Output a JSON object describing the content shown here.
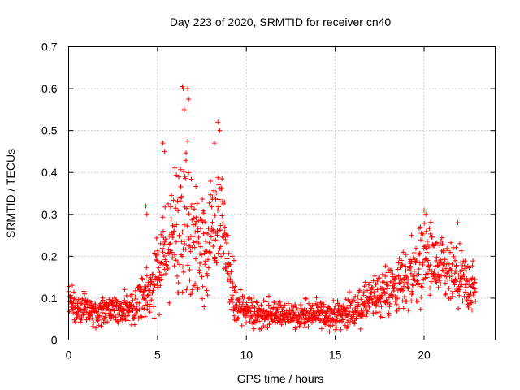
{
  "chart_data": {
    "type": "scatter",
    "title": "Day 223 of 2020, SRMTID for receiver cn40",
    "xlabel": "GPS time / hours",
    "ylabel": "SRMTID / TECUs",
    "xlim": [
      0,
      24
    ],
    "ylim": [
      0,
      0.7
    ],
    "xticks": [
      0,
      5,
      10,
      15,
      20
    ],
    "xtick_labels": [
      "0",
      "5",
      "10",
      "15",
      "20"
    ],
    "yticks": [
      0,
      0.1,
      0.2,
      0.3,
      0.4,
      0.5,
      0.6,
      0.7
    ],
    "ytick_labels": [
      "0",
      "0.1",
      "0.2",
      "0.3",
      "0.4",
      "0.5",
      "0.6",
      "0.7"
    ],
    "grid": true,
    "marker": "+",
    "color": "#ff0000",
    "x_sample_range": [
      0,
      22.9
    ],
    "series": [
      {
        "name": "SRMTID",
        "x": [
          0.0,
          0.5,
          1.0,
          1.5,
          2.0,
          2.5,
          3.0,
          3.5,
          4.0,
          4.3,
          4.6,
          5.0,
          5.3,
          5.6,
          6.0,
          6.3,
          6.5,
          6.8,
          7.0,
          7.3,
          7.6,
          8.0,
          8.3,
          8.5,
          8.8,
          9.0,
          9.3,
          9.6,
          10.0,
          10.5,
          11.0,
          12.0,
          13.0,
          14.0,
          15.0,
          15.5,
          16.0,
          16.5,
          17.0,
          17.5,
          18.0,
          18.5,
          19.0,
          19.5,
          20.0,
          20.3,
          20.6,
          21.0,
          21.5,
          22.0,
          22.5,
          22.9
        ],
        "y": [
          0.085,
          0.08,
          0.07,
          0.065,
          0.07,
          0.075,
          0.07,
          0.08,
          0.09,
          0.11,
          0.13,
          0.16,
          0.19,
          0.22,
          0.26,
          0.27,
          0.3,
          0.28,
          0.25,
          0.22,
          0.22,
          0.25,
          0.28,
          0.3,
          0.25,
          0.14,
          0.09,
          0.08,
          0.07,
          0.065,
          0.06,
          0.06,
          0.06,
          0.06,
          0.06,
          0.065,
          0.07,
          0.08,
          0.095,
          0.11,
          0.12,
          0.13,
          0.145,
          0.16,
          0.2,
          0.19,
          0.17,
          0.16,
          0.15,
          0.14,
          0.13,
          0.12
        ],
        "spread": [
          0.03,
          0.03,
          0.03,
          0.025,
          0.025,
          0.03,
          0.03,
          0.03,
          0.035,
          0.05,
          0.06,
          0.08,
          0.09,
          0.1,
          0.12,
          0.14,
          0.15,
          0.14,
          0.12,
          0.1,
          0.1,
          0.1,
          0.1,
          0.1,
          0.08,
          0.06,
          0.04,
          0.03,
          0.03,
          0.03,
          0.03,
          0.025,
          0.025,
          0.025,
          0.025,
          0.03,
          0.03,
          0.035,
          0.04,
          0.045,
          0.05,
          0.055,
          0.06,
          0.07,
          0.08,
          0.075,
          0.07,
          0.065,
          0.06,
          0.06,
          0.055,
          0.05
        ]
      }
    ],
    "peaks": {
      "x": [
        6.4,
        6.45,
        6.7,
        6.75,
        8.4,
        8.5,
        8.2,
        6.5,
        5.3,
        5.4,
        4.35,
        4.4,
        20.0,
        20.1,
        21.9,
        19.3,
        9.2,
        9.3
      ],
      "y": [
        0.605,
        0.6,
        0.6,
        0.575,
        0.52,
        0.5,
        0.47,
        0.55,
        0.47,
        0.45,
        0.32,
        0.3,
        0.31,
        0.3,
        0.28,
        0.25,
        0.2,
        0.19
      ]
    }
  }
}
